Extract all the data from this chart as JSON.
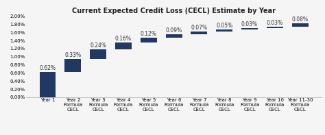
{
  "title": "Current Expected Credit Loss (CECL) Estimate by Year",
  "categories": [
    "Year 1",
    "Year 2\nFormula\nCECL",
    "Year 3\nFormula\nCECL",
    "Year 4\nFormula\nCECL",
    "Year 5\nFormula\nCECL",
    "Year 6\nFormula\nCECL",
    "Year 7\nFormula\nCECL",
    "Year 8\nFormula\nCECL",
    "Year 9\nFormula\nCECL",
    "Year 10\nFormula\nCECL",
    "Year 11-30\nFormula\nCECL"
  ],
  "increments": [
    0.62,
    0.33,
    0.24,
    0.16,
    0.12,
    0.09,
    0.07,
    0.05,
    0.03,
    0.03,
    0.08
  ],
  "labels": [
    "0.62%",
    "0.33%",
    "0.24%",
    "0.16%",
    "0.12%",
    "0.09%",
    "0.07%",
    "0.05%",
    "0.03%",
    "0.03%",
    "0.08%"
  ],
  "bar_color": "#1F3864",
  "ylim": [
    0.0,
    2.0
  ],
  "yticks": [
    0.0,
    0.2,
    0.4,
    0.6,
    0.8,
    1.0,
    1.2,
    1.4,
    1.6,
    1.8,
    2.0
  ],
  "ytick_labels": [
    "0.00%",
    "0.20%",
    "0.40%",
    "0.60%",
    "0.80%",
    "1.00%",
    "1.20%",
    "1.40%",
    "1.60%",
    "1.80%",
    "2.00%"
  ],
  "background_color": "#f5f5f5",
  "title_fontsize": 7,
  "tick_fontsize": 5,
  "label_fontsize": 5.5
}
